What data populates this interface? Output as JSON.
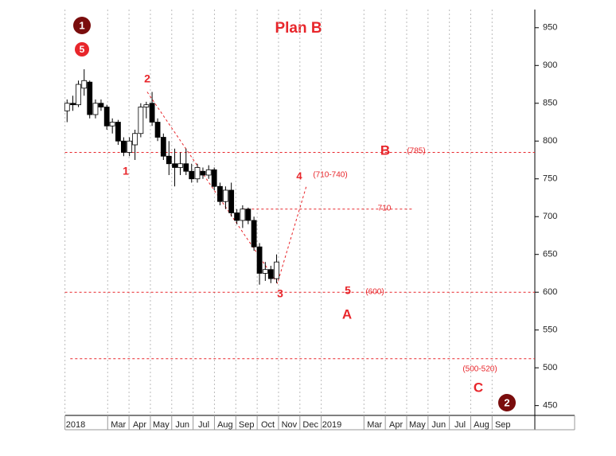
{
  "chart_data": {
    "type": "candlestick",
    "title": "Plan B",
    "x": [
      0.1,
      0.37,
      0.63,
      0.9,
      1.16,
      1.43,
      1.69,
      1.96,
      2.22,
      2.49,
      2.75,
      3.02,
      3.28,
      3.55,
      3.81,
      4.08,
      4.34,
      4.61,
      4.87,
      5.14,
      5.4,
      5.67,
      5.93,
      6.2,
      6.46,
      6.73,
      6.99,
      7.26,
      7.52,
      7.79,
      8.05,
      8.32,
      8.58,
      8.85,
      9.11,
      9.38,
      9.64,
      9.91
    ],
    "open": [
      840,
      850,
      848,
      870,
      878,
      835,
      850,
      845,
      820,
      825,
      800,
      785,
      795,
      810,
      845,
      850,
      825,
      805,
      780,
      770,
      765,
      770,
      760,
      750,
      760,
      755,
      762,
      740,
      720,
      735,
      705,
      695,
      710,
      695,
      660,
      625,
      630,
      618
    ],
    "high": [
      855,
      860,
      880,
      895,
      880,
      855,
      855,
      848,
      830,
      828,
      805,
      805,
      815,
      850,
      852,
      865,
      830,
      810,
      800,
      790,
      785,
      790,
      770,
      770,
      765,
      768,
      765,
      745,
      740,
      745,
      710,
      715,
      712,
      700,
      665,
      640,
      635,
      650
    ],
    "low": [
      825,
      840,
      845,
      860,
      830,
      830,
      840,
      815,
      810,
      795,
      780,
      780,
      775,
      805,
      830,
      820,
      800,
      775,
      755,
      740,
      755,
      755,
      745,
      745,
      750,
      750,
      735,
      715,
      710,
      700,
      690,
      685,
      690,
      655,
      610,
      615,
      612,
      612
    ],
    "close": [
      850,
      848,
      875,
      880,
      835,
      850,
      845,
      820,
      825,
      800,
      785,
      800,
      810,
      845,
      848,
      825,
      805,
      780,
      770,
      765,
      770,
      760,
      750,
      765,
      755,
      762,
      740,
      720,
      735,
      705,
      695,
      710,
      695,
      660,
      625,
      630,
      618,
      640
    ],
    "up_color": "#ffffff",
    "down_color": "#000000",
    "xlim": [
      0,
      22
    ],
    "ylim": [
      437,
      974
    ],
    "xticks": [
      {
        "value": 0,
        "label": "2018"
      },
      {
        "value": 2,
        "label": "Mar"
      },
      {
        "value": 3,
        "label": "Apr"
      },
      {
        "value": 4,
        "label": "May"
      },
      {
        "value": 5,
        "label": "Jun"
      },
      {
        "value": 6,
        "label": "Jul"
      },
      {
        "value": 7,
        "label": "Aug"
      },
      {
        "value": 8,
        "label": "Sep"
      },
      {
        "value": 9,
        "label": "Oct"
      },
      {
        "value": 10,
        "label": "Nov"
      },
      {
        "value": 11,
        "label": "Dec"
      },
      {
        "value": 12,
        "label": "2019"
      },
      {
        "value": 14,
        "label": "Mar"
      },
      {
        "value": 15,
        "label": "Apr"
      },
      {
        "value": 16,
        "label": "May"
      },
      {
        "value": 17,
        "label": "Jun"
      },
      {
        "value": 18,
        "label": "Jul"
      },
      {
        "value": 19,
        "label": "Aug"
      },
      {
        "value": 20,
        "label": "Sep"
      }
    ],
    "yticks": [
      450,
      500,
      550,
      600,
      650,
      700,
      750,
      800,
      850,
      900,
      950
    ],
    "grid": true,
    "levels": [
      {
        "value": 785,
        "x": [
          0,
          22
        ]
      },
      {
        "value": 710,
        "x": [
          8.3,
          16.3
        ]
      },
      {
        "value": 600,
        "x": [
          0,
          22
        ]
      },
      {
        "value": 512,
        "x": [
          0.25,
          22
        ]
      }
    ],
    "wave_line": {
      "x": [
        3.85,
        9.95,
        11.3
      ],
      "values": [
        865,
        612,
        740
      ]
    },
    "level_color": "#e8262b",
    "annotations": [
      "1",
      "5",
      "2",
      "1",
      "3",
      "4",
      "(710-740)",
      "B",
      "(785)",
      "710",
      "5",
      "(600)",
      "A",
      "(500-520)",
      "C",
      "2"
    ]
  }
}
